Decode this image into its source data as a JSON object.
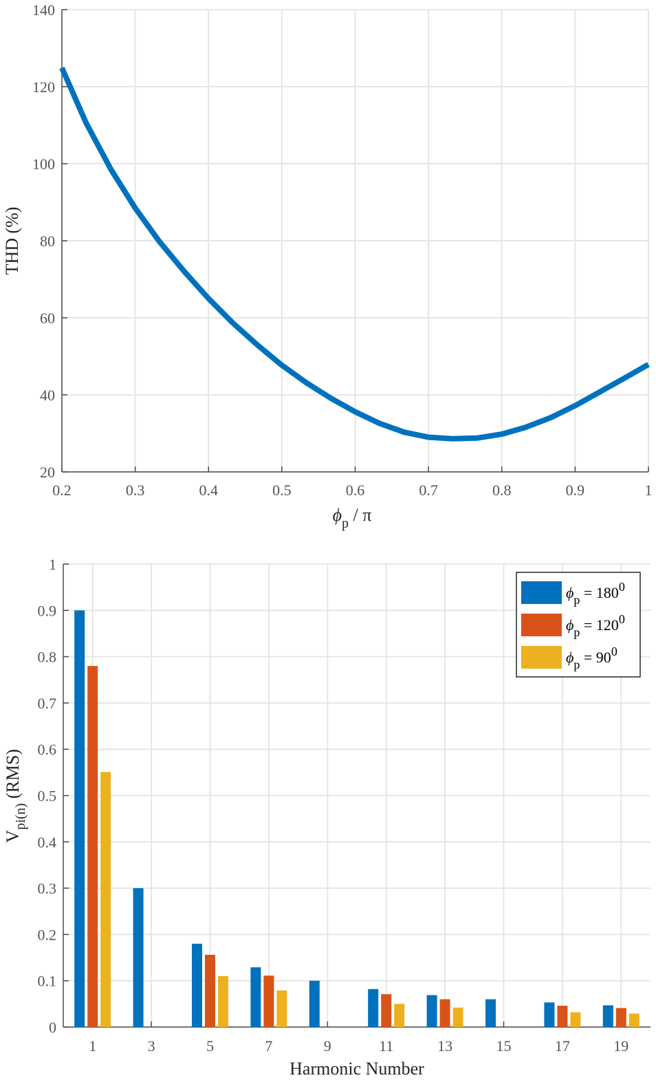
{
  "colors": {
    "blue": "#0072bd",
    "orange": "#d95319",
    "yellow": "#edb120",
    "grid": "#e6e6e6",
    "axis": "#4d4d4d"
  },
  "labels": {
    "top_ylabel": "THD (%)",
    "top_xlabel_sym": "ϕ",
    "top_xlabel_sub": "p",
    "top_xlabel_rest": " / π",
    "bottom_ylabel_main": "V",
    "bottom_ylabel_sub": "pi(n)",
    "bottom_ylabel_rest": " (RMS)",
    "bottom_xlabel": "Harmonic Number"
  },
  "chart_data": [
    {
      "type": "line",
      "xlabel": "ϕp / π",
      "ylabel": "THD (%)",
      "xlim": [
        0.2,
        1
      ],
      "ylim": [
        20,
        140
      ],
      "xticks": [
        "0.2",
        "0.3",
        "0.4",
        "0.5",
        "0.6",
        "0.7",
        "0.8",
        "0.9",
        "1"
      ],
      "yticks": [
        "20",
        "40",
        "60",
        "80",
        "100",
        "120",
        "140"
      ],
      "grid": true,
      "series": [
        {
          "color": "#0072bd",
          "x": [
            0.2,
            0.233,
            0.267,
            0.3,
            0.333,
            0.367,
            0.4,
            0.433,
            0.467,
            0.5,
            0.533,
            0.567,
            0.6,
            0.633,
            0.667,
            0.7,
            0.733,
            0.767,
            0.8,
            0.833,
            0.867,
            0.9,
            0.933,
            0.967,
            1.0
          ],
          "y": [
            124.9,
            110.6,
            98.5,
            88.5,
            79.8,
            72.0,
            65.0,
            58.7,
            52.9,
            47.7,
            43.2,
            39.1,
            35.6,
            32.6,
            30.3,
            29.0,
            28.6,
            28.8,
            29.8,
            31.6,
            34.1,
            37.2,
            40.7,
            44.3,
            47.9
          ]
        }
      ]
    },
    {
      "type": "bar",
      "xlabel": "Harmonic Number",
      "ylabel": "Vpi(n) (RMS)",
      "categories": [
        "1",
        "3",
        "5",
        "7",
        "9",
        "11",
        "13",
        "15",
        "17",
        "19"
      ],
      "ylim": [
        0,
        1
      ],
      "yticks": [
        "0",
        "0.1",
        "0.2",
        "0.3",
        "0.4",
        "0.5",
        "0.6",
        "0.7",
        "0.8",
        "0.9",
        "1"
      ],
      "grid": true,
      "legend": "top-right",
      "series": [
        {
          "name_sym": "ϕ",
          "name_sub": "p",
          "name_eq": " = 180",
          "name_sup": "0",
          "color": "#0072bd",
          "values": [
            0.9,
            0.3,
            0.18,
            0.129,
            0.1,
            0.082,
            0.069,
            0.06,
            0.053,
            0.047
          ]
        },
        {
          "name_sym": "ϕ",
          "name_sub": "p",
          "name_eq": " = 120",
          "name_sup": "0",
          "color": "#d95319",
          "values": [
            0.78,
            0,
            0.156,
            0.111,
            0,
            0.071,
            0.06,
            0,
            0.046,
            0.041
          ]
        },
        {
          "name_sym": "ϕ",
          "name_sub": "p",
          "name_eq": " = 90",
          "name_sup": "0",
          "color": "#edb120",
          "values": [
            0.551,
            0,
            0.11,
            0.079,
            0,
            0.05,
            0.042,
            0,
            0.032,
            0.029
          ]
        }
      ]
    }
  ]
}
